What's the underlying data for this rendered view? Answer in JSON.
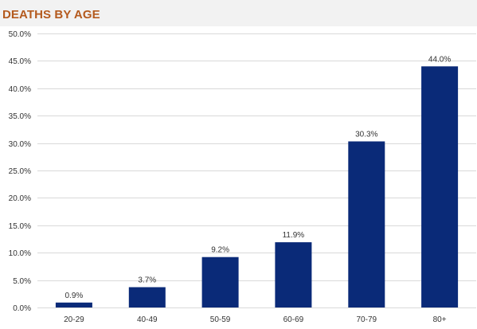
{
  "chart_data": {
    "type": "bar",
    "title": "DEATHS BY AGE",
    "categories": [
      "20-29",
      "40-49",
      "50-59",
      "60-69",
      "70-79",
      "80+"
    ],
    "values": [
      0.9,
      3.7,
      9.2,
      11.9,
      30.3,
      44.0
    ],
    "value_labels": [
      "0.9%",
      "3.7%",
      "9.2%",
      "11.9%",
      "30.3%",
      "44.0%"
    ],
    "y_ticks": [
      0,
      5,
      10,
      15,
      20,
      25,
      30,
      35,
      40,
      45,
      50
    ],
    "y_tick_labels": [
      "0.0%",
      "5.0%",
      "10.0%",
      "15.0%",
      "20.0%",
      "25.0%",
      "30.0%",
      "35.0%",
      "40.0%",
      "45.0%",
      "50.0%"
    ],
    "ylim": [
      0,
      50
    ],
    "xlabel": "",
    "ylabel": "",
    "grid": true,
    "legend": "none",
    "colors": {
      "bar": "#0a2a78",
      "title": "#b45a1e",
      "grid": "#d9d9d9",
      "header_band": "#f2f2f2"
    }
  }
}
